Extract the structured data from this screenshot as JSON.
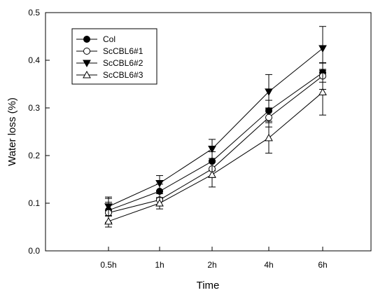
{
  "chart_data": {
    "type": "line",
    "xlabel": "Time",
    "ylabel": "Water loss (%)",
    "categories": [
      "0.5h",
      "1h",
      "2h",
      "4h",
      "6h"
    ],
    "ylim": [
      0.0,
      0.5
    ],
    "yticks": [
      "0.0",
      "0.1",
      "0.2",
      "0.3",
      "0.4",
      "0.5"
    ],
    "grid": false,
    "legend_position": "top-left",
    "series": [
      {
        "name": "Col",
        "marker": "circle-filled",
        "values": [
          0.085,
          0.125,
          0.188,
          0.294,
          0.374
        ],
        "errors": [
          0.025,
          0.015,
          0.02,
          0.022,
          0.02
        ]
      },
      {
        "name": "ScCBL6#1",
        "marker": "circle-open",
        "values": [
          0.08,
          0.107,
          0.172,
          0.28,
          0.367
        ],
        "errors": [
          0.022,
          0.013,
          0.018,
          0.02,
          0.028
        ]
      },
      {
        "name": "ScCBL6#2",
        "marker": "triangle-down-filled",
        "values": [
          0.093,
          0.142,
          0.214,
          0.334,
          0.425
        ],
        "errors": [
          0.02,
          0.016,
          0.02,
          0.036,
          0.046
        ]
      },
      {
        "name": "ScCBL6#3",
        "marker": "triangle-up-open",
        "values": [
          0.062,
          0.1,
          0.16,
          0.237,
          0.333
        ],
        "errors": [
          0.012,
          0.012,
          0.026,
          0.032,
          0.048
        ]
      }
    ]
  }
}
